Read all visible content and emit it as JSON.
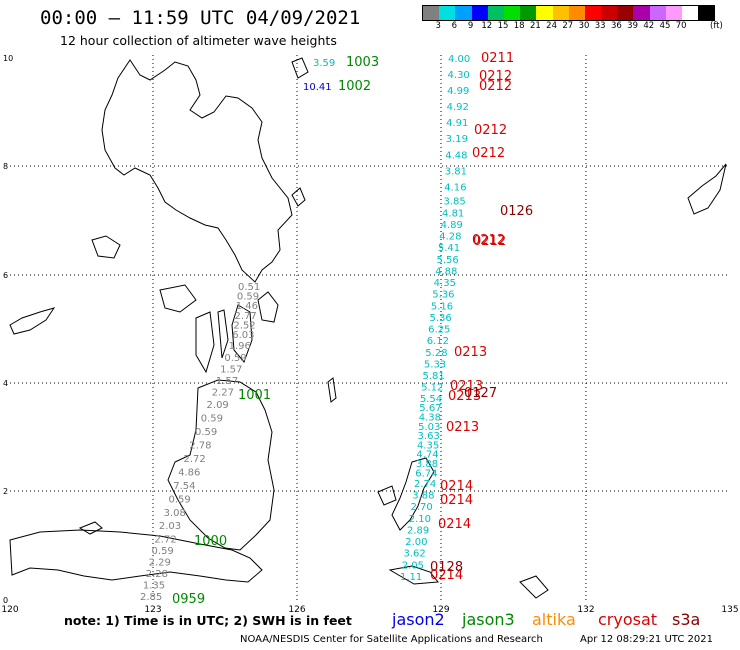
{
  "header": {
    "title": "00:00 – 11:59 UTC 04/09/2021",
    "subtitle": "12 hour collection of altimeter wave heights"
  },
  "colorbar": {
    "colors": [
      "#808080",
      "#00e0e0",
      "#00a0ff",
      "#0000ff",
      "#00c060",
      "#00e000",
      "#009900",
      "#ffff00",
      "#ffc000",
      "#ff8c00",
      "#ff0000",
      "#cc0000",
      "#990000",
      "#aa00aa",
      "#cc66ff",
      "#ff99ff",
      "#ffffff",
      "#000000"
    ],
    "labels": [
      "3",
      "6",
      "9",
      "12",
      "15",
      "18",
      "21",
      "24",
      "27",
      "30",
      "33",
      "36",
      "39",
      "42",
      "45",
      "70"
    ],
    "unit": "(ft)"
  },
  "axes": {
    "x_ticks": [
      "120",
      "123",
      "126",
      "129",
      "132",
      "135"
    ],
    "y_ticks": [
      "0",
      "2",
      "4",
      "6",
      "8",
      "10"
    ]
  },
  "tracks": {
    "gray": [
      "0.51",
      "0.59",
      "1.46",
      "2.77",
      "2.52",
      "6.03",
      "1.96",
      "0.59",
      "1.57",
      "1.57",
      "2.27",
      "2.09",
      "0.59",
      "0.59",
      "2.78",
      "2.72",
      "4.86",
      "7.54",
      "0.59",
      "3.08",
      "2.03",
      "2.72",
      "0.59",
      "2.29",
      "2.28",
      "1.35",
      "2.85"
    ],
    "cyan": [
      "4.00",
      "4.30",
      "4.99",
      "4.92",
      "4.91",
      "3.19",
      "4.48",
      "3.81",
      "4.16",
      "3.85",
      "4.81",
      "4.89",
      "4.28",
      "5.41",
      "5.56",
      "4.88",
      "4.35",
      "5.36",
      "5.16",
      "5.36",
      "6.25",
      "6.12",
      "5.28",
      "5.33",
      "5.81",
      "5.12",
      "5.54",
      "5.67",
      "4.38",
      "5.03",
      "3.63",
      "4.35",
      "4.74",
      "3.88",
      "6.74",
      "2.74",
      "3.88",
      "2.70",
      "2.10",
      "2.89",
      "2.00",
      "3.62",
      "2.05",
      "1.11"
    ]
  },
  "pass_labels": [
    {
      "time": "1003",
      "color": "#008800"
    },
    {
      "time": "1002",
      "color": "#008800"
    },
    {
      "time": "0211",
      "color": "#dd0000"
    },
    {
      "time": "0212",
      "color": "#dd0000"
    },
    {
      "time": "0212",
      "color": "#dd0000"
    },
    {
      "time": "0212",
      "color": "#dd0000"
    },
    {
      "time": "0212",
      "color": "#dd0000"
    },
    {
      "time": "0212",
      "color": "#dd0000"
    },
    {
      "time": "0126",
      "color": "#880000"
    },
    {
      "time": "0212",
      "color": "#dd0000"
    },
    {
      "time": "0213",
      "color": "#dd0000"
    },
    {
      "time": "0213",
      "color": "#dd0000"
    },
    {
      "time": "0213",
      "color": "#dd0000"
    },
    {
      "time": "0127",
      "color": "#880000"
    },
    {
      "time": "0213",
      "color": "#dd0000"
    },
    {
      "time": "1001",
      "color": "#008800"
    },
    {
      "time": "0214",
      "color": "#dd0000"
    },
    {
      "time": "0214",
      "color": "#dd0000"
    },
    {
      "time": "0214",
      "color": "#dd0000"
    },
    {
      "time": "1000",
      "color": "#008800"
    },
    {
      "time": "0128",
      "color": "#880000"
    },
    {
      "time": "0214",
      "color": "#dd0000"
    },
    {
      "time": "0959",
      "color": "#008800"
    }
  ],
  "point_values": [
    {
      "value": "3.59",
      "color": "#00bfbf"
    },
    {
      "value": "10.41",
      "color": "#0000cc"
    }
  ],
  "footer": {
    "note": "note:  1) Time is in UTC;  2) SWH is in feet",
    "satellites": [
      {
        "name": "jason2",
        "color": "#0000ee"
      },
      {
        "name": "jason3",
        "color": "#008800"
      },
      {
        "name": "altika",
        "color": "#ff8c00"
      },
      {
        "name": "cryosat",
        "color": "#dd0000"
      },
      {
        "name": "s3a",
        "color": "#880000"
      }
    ],
    "credit": "NOAA/NESDIS Center for Satellite Applications and Research",
    "stamp": "Apr 12 08:29:21 UTC 2021"
  }
}
